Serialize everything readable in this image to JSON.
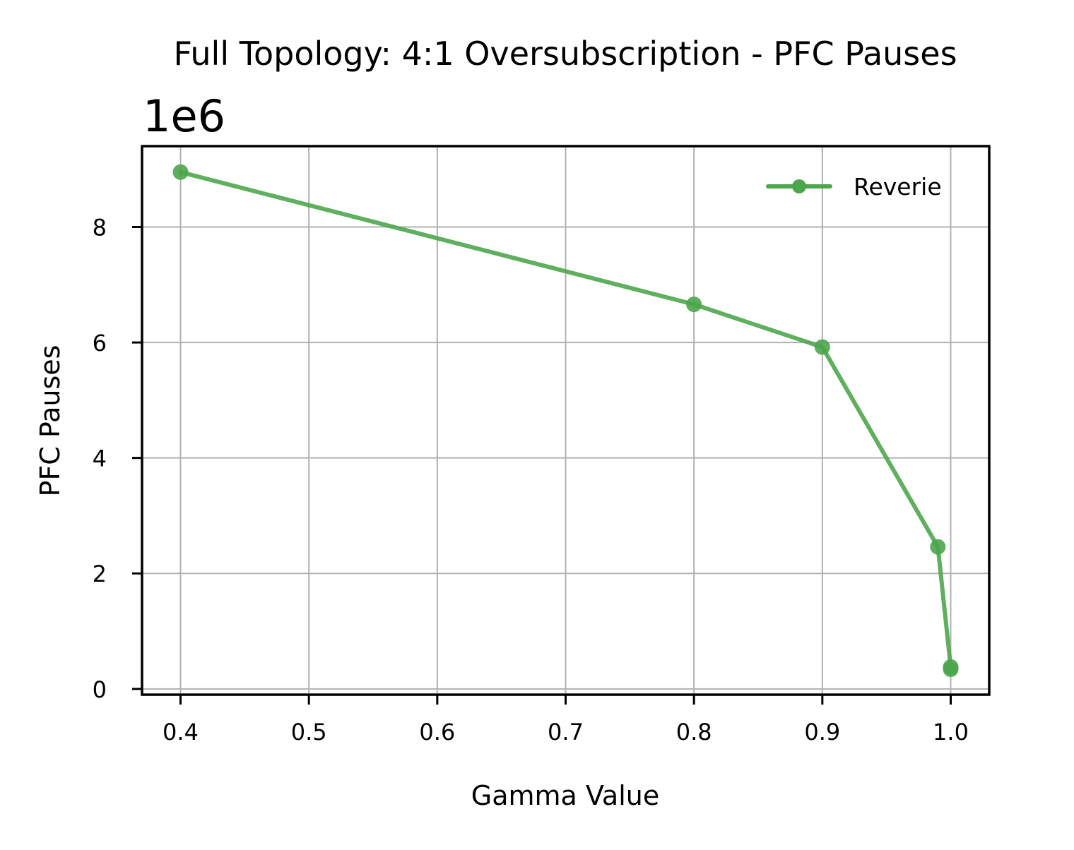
{
  "chart_data": {
    "type": "line",
    "title": "Full Topology: 4:1 Oversubscription - PFC Pauses",
    "xlabel": "Gamma Value",
    "ylabel": "PFC Pauses",
    "y_multiplier_label": "1e6",
    "xlim": [
      0.37,
      1.03
    ],
    "ylim": [
      -0.1,
      9.4
    ],
    "x_ticks": [
      0.4,
      0.5,
      0.6,
      0.7,
      0.8,
      0.9,
      1.0
    ],
    "x_tick_labels": [
      "0.4",
      "0.5",
      "0.6",
      "0.7",
      "0.8",
      "0.9",
      "1.0"
    ],
    "y_ticks": [
      0,
      2,
      4,
      6,
      8
    ],
    "y_tick_labels": [
      "0",
      "2",
      "4",
      "6",
      "8"
    ],
    "grid": true,
    "legend": "top-right",
    "series": [
      {
        "name": "Reverie",
        "color": "#4ca64c",
        "marker": "circle",
        "x": [
          0.4,
          0.8,
          0.9,
          0.99,
          1.0,
          1.0
        ],
        "y": [
          8.95,
          6.66,
          5.92,
          2.46,
          0.38,
          0.34
        ]
      }
    ]
  }
}
